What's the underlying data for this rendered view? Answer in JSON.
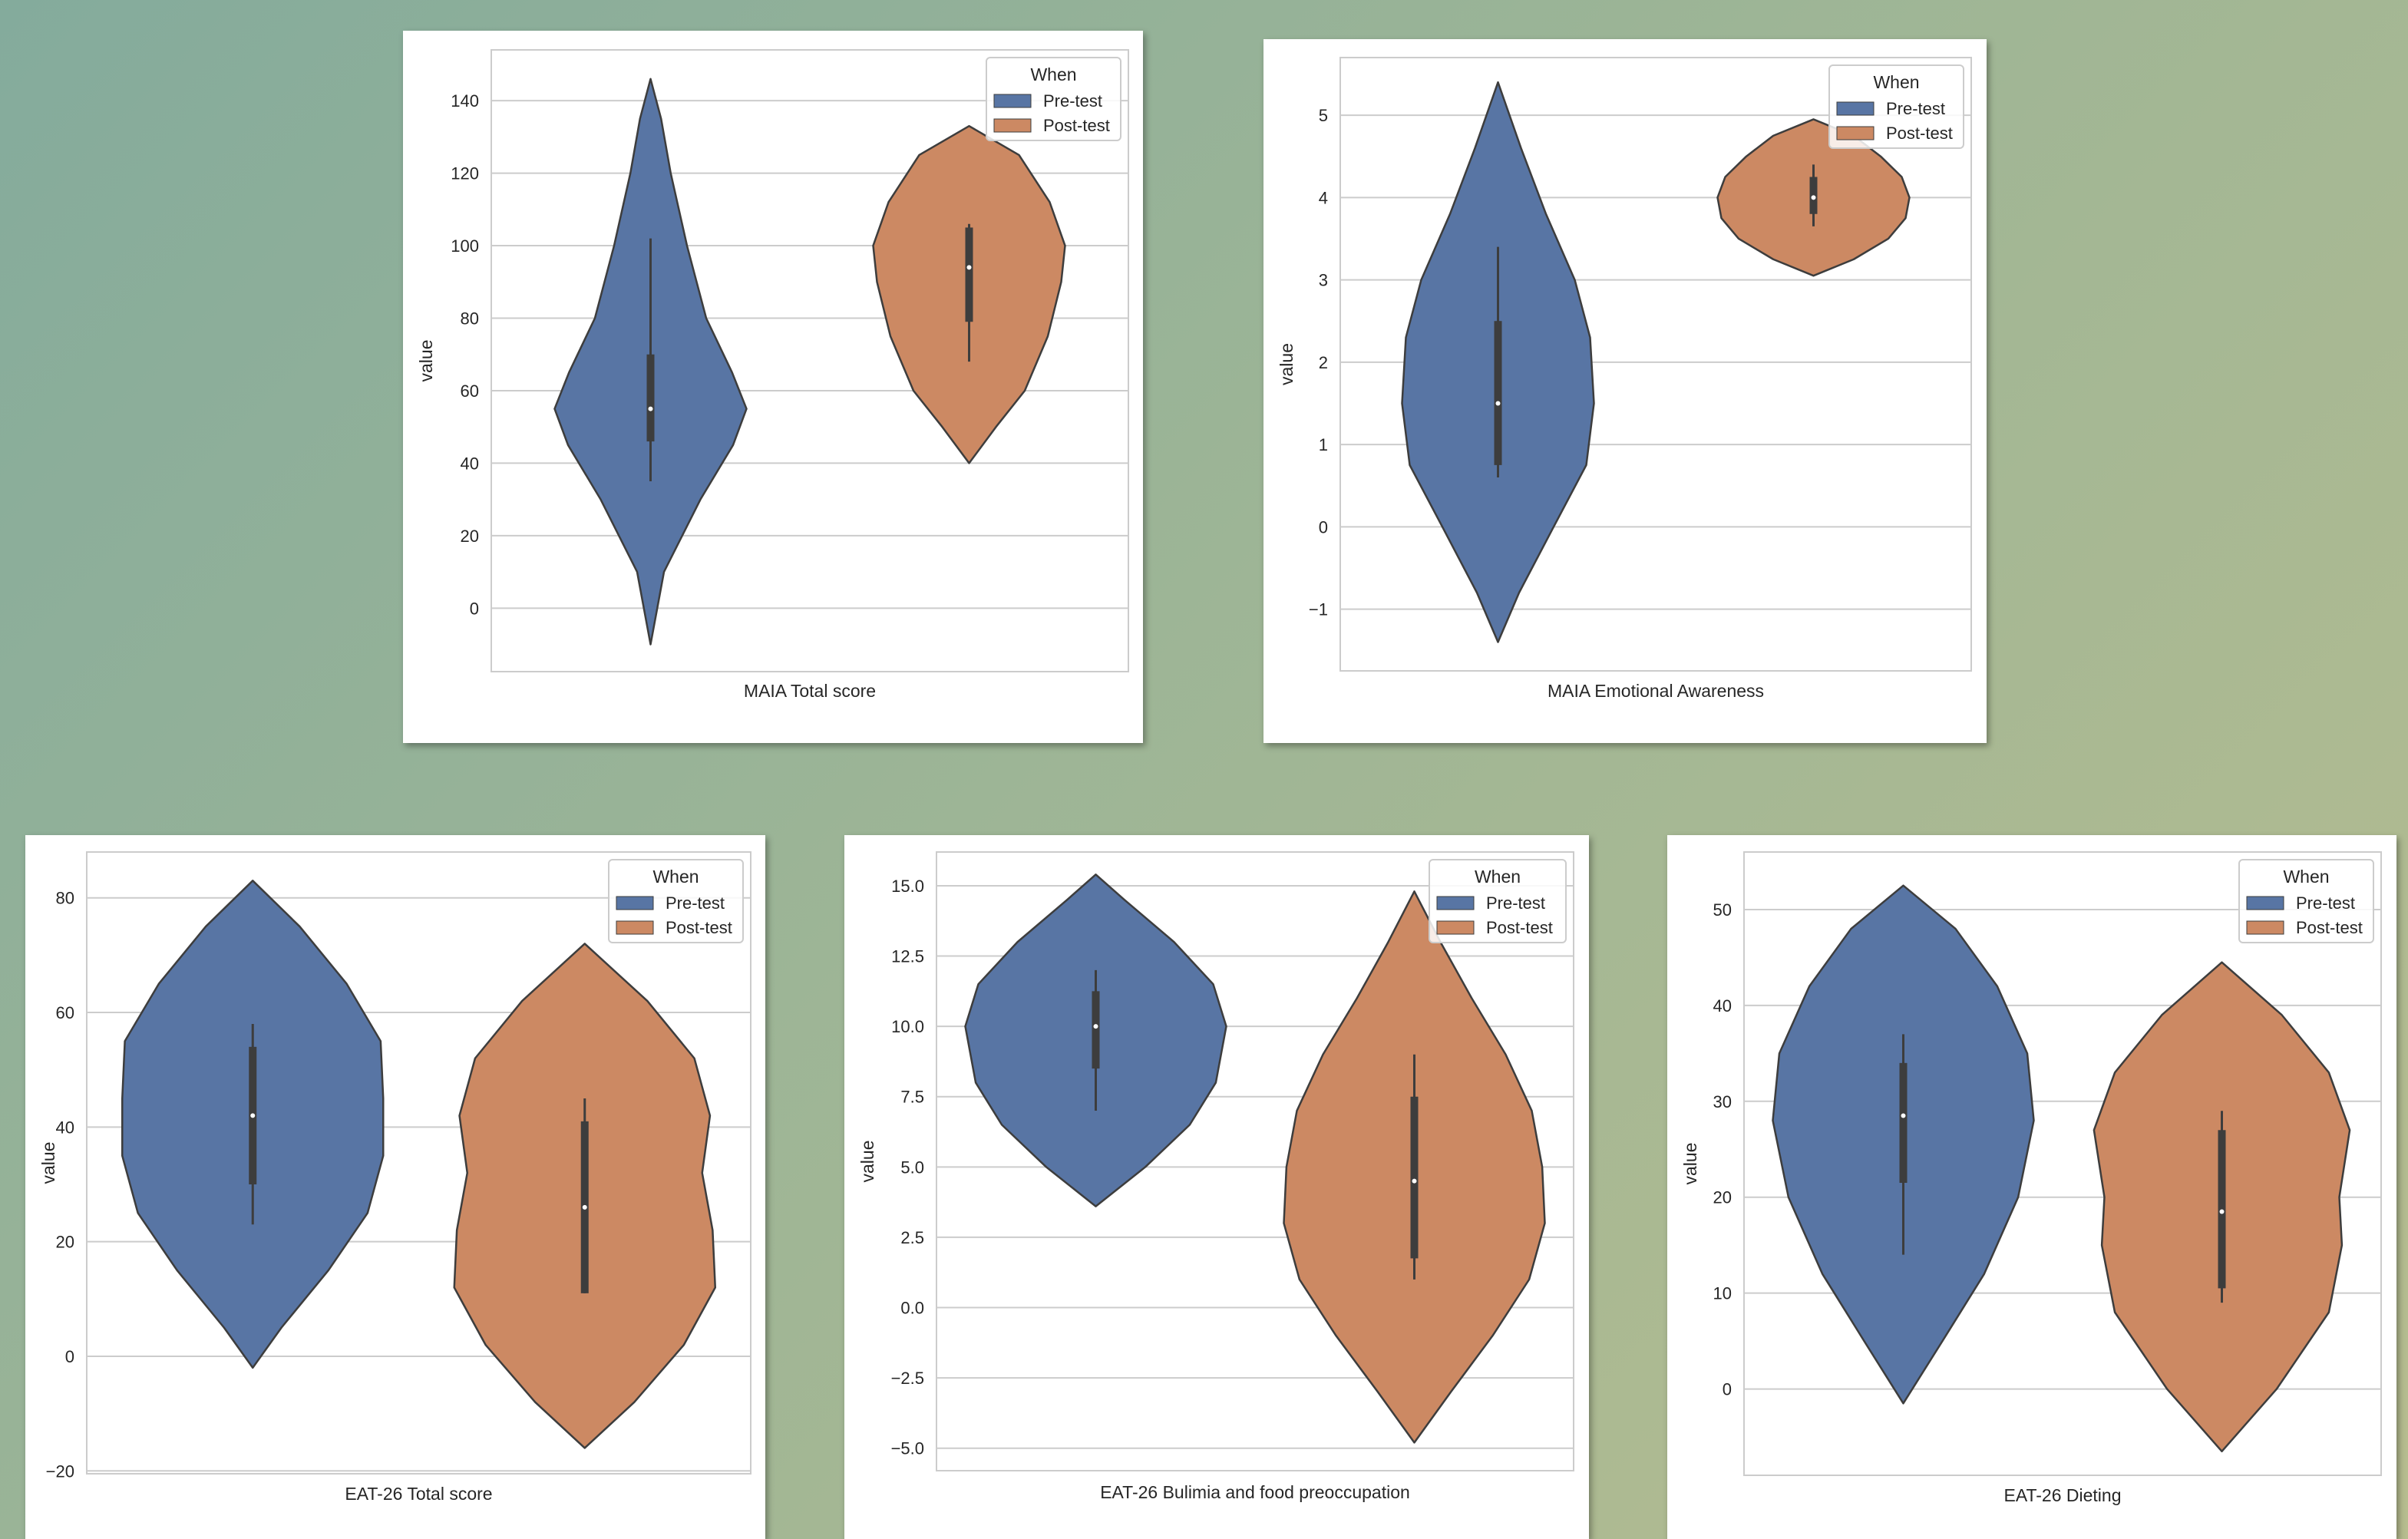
{
  "colors": {
    "pre": "#5875a4",
    "post": "#cc8963",
    "violin_edge": "#3d3d3d",
    "box": "#3d3d3d"
  },
  "chart_data": [
    {
      "type": "violin",
      "xlabel": "MAIA Total score",
      "ylabel": "value",
      "ylim": [
        -17.5,
        154
      ],
      "yticks": [
        0,
        20,
        40,
        60,
        80,
        100,
        120,
        140
      ],
      "legend": {
        "title": "When",
        "entries": [
          "Pre-test",
          "Post-test"
        ],
        "placement": "top-right"
      },
      "grid": true,
      "series": [
        {
          "name": "Pre-test",
          "range": [
            -10,
            146
          ],
          "q1": 46,
          "median": 55,
          "q3": 70,
          "whisker": [
            35,
            102
          ],
          "profile": [
            [
              -10,
              0.0
            ],
            [
              10,
              0.14
            ],
            [
              30,
              0.52
            ],
            [
              45,
              0.86
            ],
            [
              55,
              1.0
            ],
            [
              65,
              0.85
            ],
            [
              80,
              0.58
            ],
            [
              100,
              0.38
            ],
            [
              120,
              0.21
            ],
            [
              135,
              0.11
            ],
            [
              146,
              0.0
            ]
          ]
        },
        {
          "name": "Post-test",
          "range": [
            40,
            133
          ],
          "q1": 79,
          "median": 94,
          "q3": 105,
          "whisker": [
            68,
            106
          ],
          "profile": [
            [
              40,
              0.0
            ],
            [
              50,
              0.28
            ],
            [
              60,
              0.58
            ],
            [
              75,
              0.82
            ],
            [
              90,
              0.96
            ],
            [
              100,
              1.0
            ],
            [
              112,
              0.84
            ],
            [
              125,
              0.52
            ],
            [
              133,
              0.0
            ]
          ]
        }
      ]
    },
    {
      "type": "violin",
      "xlabel": "MAIA Emotional Awareness",
      "ylabel": "value",
      "ylim": [
        -1.75,
        5.7
      ],
      "yticks": [
        -1,
        0,
        1,
        2,
        3,
        4,
        5
      ],
      "legend": {
        "title": "When",
        "entries": [
          "Pre-test",
          "Post-test"
        ],
        "placement": "top-right"
      },
      "grid": true,
      "series": [
        {
          "name": "Pre-test",
          "range": [
            -1.4,
            5.4
          ],
          "q1": 0.75,
          "median": 1.5,
          "q3": 2.5,
          "whisker": [
            0.6,
            3.4
          ],
          "profile": [
            [
              -1.4,
              0.0
            ],
            [
              -0.8,
              0.22
            ],
            [
              0,
              0.58
            ],
            [
              0.75,
              0.92
            ],
            [
              1.5,
              1.0
            ],
            [
              2.3,
              0.96
            ],
            [
              3,
              0.8
            ],
            [
              3.8,
              0.5
            ],
            [
              4.6,
              0.24
            ],
            [
              5.4,
              0.0
            ]
          ]
        },
        {
          "name": "Post-test",
          "range": [
            3.05,
            4.95
          ],
          "q1": 3.8,
          "median": 4.0,
          "q3": 4.25,
          "whisker": [
            3.65,
            4.4
          ],
          "profile": [
            [
              3.05,
              0.0
            ],
            [
              3.25,
              0.42
            ],
            [
              3.5,
              0.78
            ],
            [
              3.75,
              0.96
            ],
            [
              4.0,
              1.0
            ],
            [
              4.25,
              0.92
            ],
            [
              4.5,
              0.7
            ],
            [
              4.75,
              0.42
            ],
            [
              4.95,
              0.0
            ]
          ]
        }
      ]
    },
    {
      "type": "violin",
      "xlabel": "EAT-26 Total score",
      "ylabel": "value",
      "ylim": [
        -20.5,
        88
      ],
      "yticks": [
        -20,
        0,
        20,
        40,
        60,
        80
      ],
      "legend": {
        "title": "When",
        "entries": [
          "Pre-test",
          "Post-test"
        ],
        "placement": "top-right"
      },
      "grid": true,
      "series": [
        {
          "name": "Pre-test",
          "range": [
            -2,
            83
          ],
          "q1": 30,
          "median": 42,
          "q3": 54,
          "whisker": [
            23,
            58
          ],
          "profile": [
            [
              -2,
              0.0
            ],
            [
              5,
              0.22
            ],
            [
              15,
              0.58
            ],
            [
              25,
              0.88
            ],
            [
              35,
              1.0
            ],
            [
              45,
              1.0
            ],
            [
              55,
              0.98
            ],
            [
              65,
              0.72
            ],
            [
              75,
              0.36
            ],
            [
              83,
              0.0
            ]
          ]
        },
        {
          "name": "Post-test",
          "range": [
            -16,
            72
          ],
          "q1": 11,
          "median": 26,
          "q3": 41,
          "whisker": [
            11,
            45
          ],
          "profile": [
            [
              -16,
              0.0
            ],
            [
              -8,
              0.38
            ],
            [
              2,
              0.76
            ],
            [
              12,
              1.0
            ],
            [
              22,
              0.98
            ],
            [
              32,
              0.9
            ],
            [
              42,
              0.96
            ],
            [
              52,
              0.84
            ],
            [
              62,
              0.48
            ],
            [
              72,
              0.0
            ]
          ]
        }
      ]
    },
    {
      "type": "violin",
      "xlabel": "EAT-26 Bulimia and food preoccupation",
      "ylabel": "value",
      "ylim": [
        -5.8,
        16.2
      ],
      "yticks": [
        -5.0,
        -2.5,
        0.0,
        2.5,
        5.0,
        7.5,
        10.0,
        12.5,
        15.0
      ],
      "ytick_labels": [
        "−5.0",
        "−2.5",
        "0.0",
        "2.5",
        "5.0",
        "7.5",
        "10.0",
        "12.5",
        "15.0"
      ],
      "legend": {
        "title": "When",
        "entries": [
          "Pre-test",
          "Post-test"
        ],
        "placement": "top-right"
      },
      "grid": true,
      "series": [
        {
          "name": "Pre-test",
          "range": [
            3.6,
            15.4
          ],
          "q1": 8.5,
          "median": 10.0,
          "q3": 11.25,
          "whisker": [
            7.0,
            12.0
          ],
          "profile": [
            [
              3.6,
              0.0
            ],
            [
              5,
              0.38
            ],
            [
              6.5,
              0.72
            ],
            [
              8,
              0.92
            ],
            [
              10,
              1.0
            ],
            [
              11.5,
              0.9
            ],
            [
              13,
              0.6
            ],
            [
              14.5,
              0.22
            ],
            [
              15.4,
              0.0
            ]
          ]
        },
        {
          "name": "Post-test",
          "range": [
            -4.8,
            14.8
          ],
          "q1": 1.75,
          "median": 4.5,
          "q3": 7.5,
          "whisker": [
            1.0,
            9.0
          ],
          "profile": [
            [
              -4.8,
              0.0
            ],
            [
              -3,
              0.28
            ],
            [
              -1,
              0.6
            ],
            [
              1,
              0.88
            ],
            [
              3,
              1.0
            ],
            [
              5,
              0.98
            ],
            [
              7,
              0.9
            ],
            [
              9,
              0.7
            ],
            [
              11,
              0.44
            ],
            [
              13,
              0.2
            ],
            [
              14.8,
              0.0
            ]
          ]
        }
      ]
    },
    {
      "type": "violin",
      "xlabel": "EAT-26 Dieting",
      "ylabel": "value",
      "ylim": [
        -9,
        56
      ],
      "yticks": [
        0,
        10,
        20,
        30,
        40,
        50
      ],
      "legend": {
        "title": "When",
        "entries": [
          "Pre-test",
          "Post-test"
        ],
        "placement": "top-right"
      },
      "grid": true,
      "series": [
        {
          "name": "Pre-test",
          "range": [
            -1.5,
            52.5
          ],
          "q1": 21.5,
          "median": 28.5,
          "q3": 34,
          "whisker": [
            14,
            37
          ],
          "profile": [
            [
              -1.5,
              0.0
            ],
            [
              5,
              0.3
            ],
            [
              12,
              0.62
            ],
            [
              20,
              0.88
            ],
            [
              28,
              1.0
            ],
            [
              35,
              0.95
            ],
            [
              42,
              0.72
            ],
            [
              48,
              0.4
            ],
            [
              52.5,
              0.0
            ]
          ]
        },
        {
          "name": "Post-test",
          "range": [
            -6.5,
            44.5
          ],
          "q1": 10.5,
          "median": 18.5,
          "q3": 27,
          "whisker": [
            9,
            29
          ],
          "profile": [
            [
              -6.5,
              0.0
            ],
            [
              0,
              0.42
            ],
            [
              8,
              0.82
            ],
            [
              15,
              0.92
            ],
            [
              20,
              0.9
            ],
            [
              27,
              0.98
            ],
            [
              33,
              0.82
            ],
            [
              39,
              0.46
            ],
            [
              44.5,
              0.0
            ]
          ]
        }
      ]
    }
  ]
}
